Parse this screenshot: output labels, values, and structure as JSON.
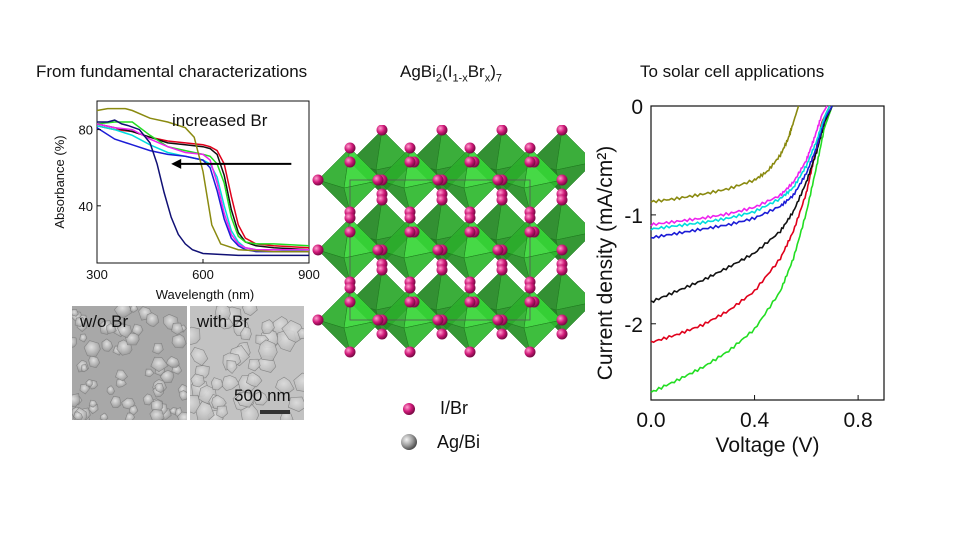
{
  "headings": {
    "left": "From fundamental  characterizations",
    "center_formula": {
      "base": "AgBi",
      "sub1": "2",
      "paren_open": "(I",
      "sub2": "1-x",
      "mid": "Br",
      "sub3": "x",
      "paren_close": ")",
      "sub4": "7"
    },
    "right": "To solar cell applications"
  },
  "sem": {
    "left_label": "w/o Br",
    "right_label": "with Br",
    "scale_label": "500 nm"
  },
  "structure_legend": {
    "items": [
      {
        "label": "I/Br",
        "color": "#d11a7a"
      },
      {
        "label": "Ag/Bi",
        "color": "#9a9a9a"
      }
    ],
    "octahedra_color": "#33cc33"
  },
  "chart_data": [
    {
      "type": "line",
      "title": "",
      "xlabel": "Wavelength (nm)",
      "ylabel": "Absorbance (%)",
      "xlim": [
        300,
        900
      ],
      "ylim": [
        10,
        95
      ],
      "xticks": [
        300,
        600,
        900
      ],
      "yticks": [
        40,
        80
      ],
      "annotation": "increased Br",
      "annotation_arrow": {
        "from_x": 850,
        "to_x": 510,
        "y": 62
      },
      "grid": false,
      "series": [
        {
          "color": "#e0001b",
          "x": [
            300,
            350,
            400,
            450,
            500,
            550,
            600,
            620,
            640,
            660,
            680,
            700,
            720,
            750,
            800,
            900
          ],
          "y": [
            82,
            80,
            79,
            76,
            74,
            73,
            72,
            71,
            69,
            62,
            45,
            30,
            23,
            20,
            19,
            18
          ]
        },
        {
          "color": "#111111",
          "x": [
            300,
            350,
            400,
            450,
            500,
            550,
            600,
            620,
            640,
            660,
            680,
            700,
            720,
            750,
            800,
            900
          ],
          "y": [
            83,
            81,
            79,
            76,
            73,
            72,
            71,
            70,
            67,
            56,
            38,
            26,
            21,
            19,
            18,
            17
          ]
        },
        {
          "color": "#22dd22",
          "x": [
            300,
            350,
            400,
            450,
            500,
            550,
            600,
            620,
            640,
            660,
            680,
            700,
            720,
            750,
            800,
            900
          ],
          "y": [
            83,
            84,
            84,
            77,
            71,
            69,
            67,
            66,
            62,
            52,
            34,
            24,
            21,
            20,
            20,
            19
          ]
        },
        {
          "color": "#00dddd",
          "x": [
            300,
            350,
            400,
            450,
            500,
            550,
            600,
            620,
            640,
            660,
            680,
            700,
            720,
            750,
            800,
            900
          ],
          "y": [
            82,
            80,
            77,
            72,
            68,
            66,
            64,
            62,
            55,
            40,
            27,
            21,
            18,
            17,
            17,
            16
          ]
        },
        {
          "color": "#ee22ee",
          "x": [
            300,
            350,
            400,
            450,
            500,
            550,
            600,
            620,
            640,
            660,
            680,
            700,
            720,
            750,
            800,
            900
          ],
          "y": [
            83,
            81,
            80,
            75,
            71,
            68,
            67,
            64,
            52,
            36,
            25,
            20,
            18,
            17,
            17,
            17
          ]
        },
        {
          "color": "#1c1cd6",
          "x": [
            300,
            350,
            400,
            450,
            500,
            550,
            600,
            620,
            640,
            660,
            680,
            700,
            720,
            750,
            800,
            900
          ],
          "y": [
            81,
            75,
            72,
            69,
            67,
            66,
            64,
            60,
            48,
            33,
            23,
            19,
            17,
            16,
            16,
            16
          ]
        },
        {
          "color": "#8a8a10",
          "x": [
            300,
            330,
            350,
            380,
            400,
            450,
            500,
            550,
            575,
            600,
            625,
            650,
            700,
            800,
            900
          ],
          "y": [
            90,
            91,
            91,
            91,
            90,
            86,
            84,
            81,
            76,
            58,
            30,
            20,
            17,
            16,
            16
          ]
        },
        {
          "color": "#101075",
          "x": [
            300,
            330,
            350,
            370,
            390,
            420,
            450,
            470,
            490,
            510,
            530,
            550,
            570,
            600,
            700,
            900
          ],
          "y": [
            84,
            84,
            85,
            83,
            82,
            80,
            73,
            62,
            47,
            34,
            25,
            20,
            17,
            15,
            14,
            14
          ]
        }
      ]
    },
    {
      "type": "line",
      "title": "",
      "xlabel": "Voltage (V)",
      "ylabel": "Current density (mA/cm²)",
      "xlim": [
        0,
        0.9
      ],
      "ylim": [
        -2.7,
        0
      ],
      "xticks": [
        0.0,
        0.4,
        0.8
      ],
      "xtick_labels": [
        "0.0",
        "0.4",
        "0.8"
      ],
      "yticks": [
        0,
        -1,
        -2
      ],
      "ytick_labels": [
        "0",
        "-1",
        "-2"
      ],
      "grid": false,
      "series": [
        {
          "color": "#22dd22",
          "x": [
            0.0,
            0.1,
            0.2,
            0.3,
            0.4,
            0.5,
            0.55,
            0.6,
            0.64,
            0.67,
            0.7
          ],
          "y": [
            -2.63,
            -2.52,
            -2.4,
            -2.25,
            -2.05,
            -1.7,
            -1.4,
            -0.98,
            -0.55,
            -0.2,
            0.0
          ]
        },
        {
          "color": "#e0001b",
          "x": [
            0.0,
            0.1,
            0.2,
            0.3,
            0.4,
            0.5,
            0.55,
            0.6,
            0.63,
            0.66,
            0.69
          ],
          "y": [
            -2.17,
            -2.1,
            -2.01,
            -1.88,
            -1.7,
            -1.4,
            -1.15,
            -0.8,
            -0.48,
            -0.15,
            0.0
          ]
        },
        {
          "color": "#111111",
          "x": [
            0.0,
            0.1,
            0.2,
            0.3,
            0.4,
            0.5,
            0.55,
            0.6,
            0.64,
            0.67,
            0.7
          ],
          "y": [
            -1.8,
            -1.7,
            -1.6,
            -1.48,
            -1.35,
            -1.15,
            -0.97,
            -0.7,
            -0.42,
            -0.15,
            0.0
          ]
        },
        {
          "color": "#1c1cd6",
          "x": [
            0.0,
            0.1,
            0.2,
            0.3,
            0.4,
            0.5,
            0.55,
            0.6,
            0.64,
            0.67,
            0.7
          ],
          "y": [
            -1.21,
            -1.17,
            -1.13,
            -1.09,
            -1.03,
            -0.92,
            -0.82,
            -0.62,
            -0.38,
            -0.12,
            0.0
          ]
        },
        {
          "color": "#00dddd",
          "x": [
            0.0,
            0.1,
            0.2,
            0.3,
            0.4,
            0.5,
            0.55,
            0.6,
            0.64,
            0.67,
            0.69
          ],
          "y": [
            -1.13,
            -1.1,
            -1.07,
            -1.03,
            -0.97,
            -0.85,
            -0.75,
            -0.55,
            -0.32,
            -0.1,
            0.0
          ]
        },
        {
          "color": "#ee22ee",
          "x": [
            0.0,
            0.1,
            0.2,
            0.3,
            0.4,
            0.5,
            0.55,
            0.6,
            0.63,
            0.66,
            0.68
          ],
          "y": [
            -1.09,
            -1.06,
            -1.03,
            -0.99,
            -0.93,
            -0.82,
            -0.7,
            -0.5,
            -0.3,
            -0.08,
            0.0
          ]
        },
        {
          "color": "#8a8a10",
          "x": [
            0.0,
            0.1,
            0.2,
            0.3,
            0.4,
            0.45,
            0.5,
            0.53,
            0.55,
            0.57
          ],
          "y": [
            -0.88,
            -0.85,
            -0.81,
            -0.76,
            -0.68,
            -0.6,
            -0.45,
            -0.3,
            -0.15,
            0.0
          ]
        }
      ]
    }
  ]
}
